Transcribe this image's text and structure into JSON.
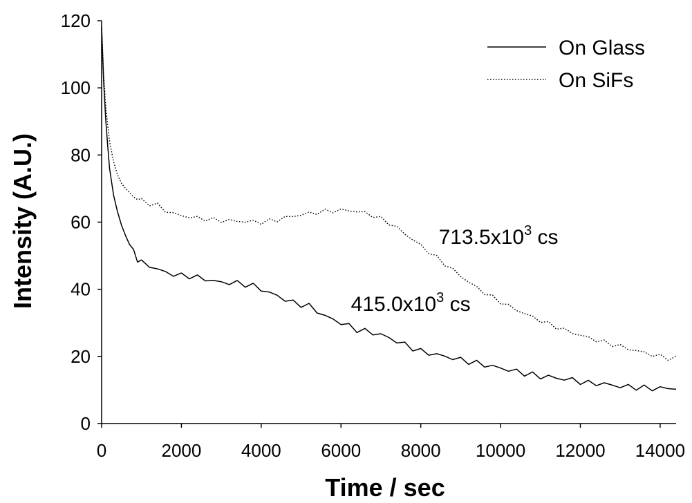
{
  "chart_data": {
    "type": "line",
    "xlabel": "Time / sec",
    "ylabel": "Intensity (A.U.)",
    "xlim": [
      0,
      14400
    ],
    "ylim": [
      0,
      120
    ],
    "xticks": [
      0,
      2000,
      4000,
      6000,
      8000,
      10000,
      12000,
      14000
    ],
    "yticks": [
      0,
      20,
      40,
      60,
      80,
      100,
      120
    ],
    "grid": false,
    "legend_position": "top-right",
    "series": [
      {
        "name": "On Glass",
        "style": "solid",
        "color": "#000000",
        "x": [
          0,
          50,
          100,
          150,
          200,
          300,
          400,
          500,
          600,
          700,
          800,
          900,
          1000,
          1200,
          1400,
          1600,
          1800,
          2000,
          2200,
          2400,
          2600,
          2800,
          3000,
          3200,
          3400,
          3600,
          3800,
          4000,
          4200,
          4400,
          4600,
          4800,
          5000,
          5200,
          5400,
          5600,
          5800,
          6000,
          6200,
          6400,
          6600,
          6800,
          7000,
          7200,
          7400,
          7600,
          7800,
          8000,
          8200,
          8400,
          8600,
          8800,
          9000,
          9200,
          9400,
          9600,
          9800,
          10000,
          10200,
          10400,
          10600,
          10800,
          11000,
          11200,
          11400,
          11600,
          11800,
          12000,
          12200,
          12400,
          12600,
          12800,
          13000,
          13200,
          13400,
          13600,
          13800,
          14000,
          14200,
          14400
        ],
        "y": [
          118,
          102,
          91,
          83,
          76,
          68,
          63,
          59,
          56,
          54,
          51,
          49,
          48,
          47,
          46,
          45,
          44.5,
          44,
          44,
          43.5,
          43,
          42.5,
          42,
          42,
          41.8,
          41.5,
          41,
          40,
          39,
          38,
          37,
          36,
          35.5,
          35,
          33.5,
          32,
          31,
          30,
          29,
          28,
          27.5,
          27,
          26.5,
          25.5,
          24.5,
          23.5,
          22.5,
          21.5,
          21,
          20.5,
          20,
          19.5,
          19,
          18.5,
          18,
          17.5,
          17,
          16.5,
          16,
          15.5,
          15,
          14.5,
          14,
          14,
          13.5,
          13.3,
          13,
          12.5,
          12,
          12,
          11.7,
          11.5,
          11,
          11,
          10.8,
          10.6,
          10.5,
          10.5,
          10.5,
          10.5
        ]
      },
      {
        "name": "On SiFs",
        "style": "dotted",
        "color": "#000000",
        "x": [
          0,
          50,
          100,
          150,
          200,
          300,
          400,
          500,
          600,
          700,
          800,
          900,
          1000,
          1200,
          1400,
          1600,
          1800,
          2000,
          2200,
          2400,
          2600,
          2800,
          3000,
          3200,
          3400,
          3600,
          3800,
          4000,
          4200,
          4400,
          4600,
          4800,
          5000,
          5200,
          5400,
          5600,
          5800,
          6000,
          6200,
          6400,
          6600,
          6800,
          7000,
          7200,
          7400,
          7600,
          7800,
          8000,
          8200,
          8400,
          8600,
          8800,
          9000,
          9200,
          9400,
          9600,
          9800,
          10000,
          10200,
          10400,
          10600,
          10800,
          11000,
          11200,
          11400,
          11600,
          11800,
          12000,
          12200,
          12400,
          12600,
          12800,
          13000,
          13200,
          13400,
          13600,
          13800,
          14000,
          14200,
          14400
        ],
        "y": [
          118,
          104,
          95,
          89,
          84,
          78,
          74,
          71.5,
          70,
          68.5,
          67.5,
          67,
          66.5,
          65.5,
          65,
          63.5,
          62.5,
          62,
          61.5,
          61.2,
          61,
          60.7,
          60.5,
          60.4,
          60.3,
          60.2,
          60.1,
          60,
          60.3,
          60.7,
          61.3,
          61.8,
          62.2,
          62.6,
          62.9,
          63.2,
          63.4,
          63.5,
          63.5,
          63.2,
          62.7,
          62,
          61,
          59.8,
          58.3,
          56.6,
          54.8,
          53,
          51.2,
          49.4,
          47.6,
          45.8,
          44,
          42.2,
          40.5,
          39,
          37.6,
          36.3,
          35,
          33.9,
          32.8,
          31.7,
          30.7,
          29.7,
          28.8,
          27.9,
          27.1,
          26.3,
          25.6,
          24.9,
          24.2,
          23.6,
          23,
          22.3,
          21.7,
          21.1,
          20.5,
          20,
          19.5,
          19.5
        ]
      }
    ],
    "annotations": [
      {
        "base": "713.5x10",
        "sup": "3",
        "unit": " cs",
        "x": 8450,
        "y": 53.5
      },
      {
        "base": "415.0x10",
        "sup": "3",
        "unit": " cs",
        "x": 6250,
        "y": 33.5
      }
    ]
  }
}
